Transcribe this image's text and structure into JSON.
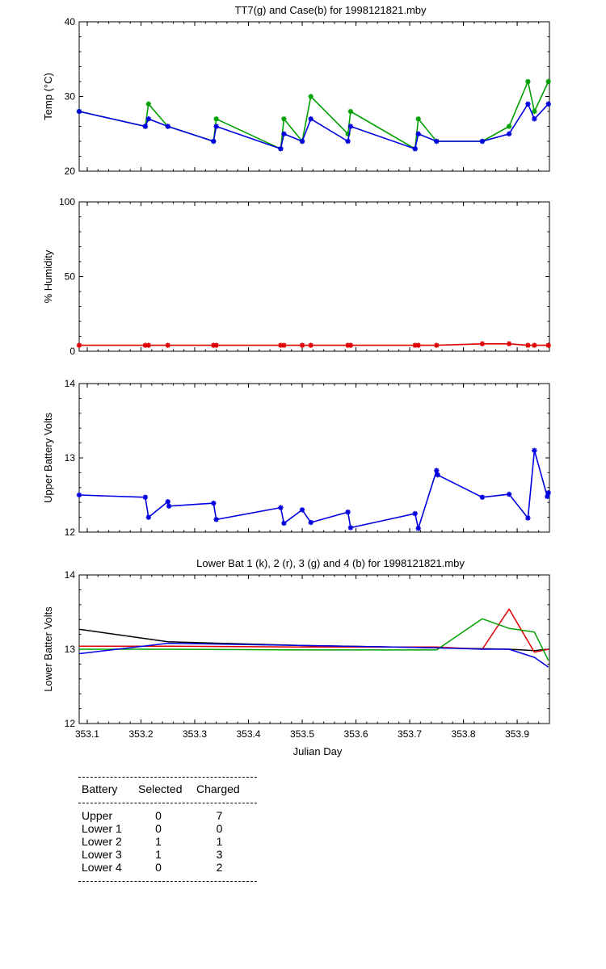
{
  "chart_data": [
    {
      "type": "line",
      "title": "TT7(g) and Case(b) for 1998121821.mby",
      "xlabel": "",
      "ylabel": "Temp  (°C)",
      "xlim": [
        353.085,
        353.96
      ],
      "ylim": [
        20,
        40
      ],
      "yticks": [
        "20",
        "30",
        "40"
      ],
      "series": [
        {
          "name": "TT7",
          "color": "#00a000",
          "x": [
            353.085,
            353.208,
            353.214,
            353.25,
            353.335,
            353.34,
            353.46,
            353.466,
            353.5,
            353.516,
            353.585,
            353.59,
            353.71,
            353.716,
            353.75,
            353.835,
            353.885,
            353.92,
            353.932,
            353.958
          ],
          "y": [
            28,
            26,
            29,
            26,
            24,
            27,
            23,
            27,
            24,
            30,
            25,
            28,
            23,
            27,
            24,
            24,
            26,
            32,
            28,
            32
          ]
        },
        {
          "name": "Case",
          "color": "#0000e0",
          "x": [
            353.085,
            353.208,
            353.214,
            353.25,
            353.335,
            353.34,
            353.46,
            353.466,
            353.5,
            353.516,
            353.585,
            353.59,
            353.71,
            353.716,
            353.75,
            353.835,
            353.885,
            353.92,
            353.932,
            353.958
          ],
          "y": [
            28,
            26,
            27,
            26,
            24,
            26,
            23,
            25,
            24,
            27,
            24,
            26,
            23,
            25,
            24,
            24,
            25,
            29,
            27,
            29
          ]
        }
      ]
    },
    {
      "type": "line",
      "title": "",
      "xlabel": "",
      "ylabel": "% Humidity",
      "xlim": [
        353.085,
        353.96
      ],
      "ylim": [
        0,
        100
      ],
      "yticks": [
        "0",
        "50",
        "100"
      ],
      "series": [
        {
          "name": "",
          "color": "#e00000",
          "x": [
            353.085,
            353.208,
            353.214,
            353.25,
            353.335,
            353.34,
            353.46,
            353.466,
            353.5,
            353.516,
            353.585,
            353.59,
            353.71,
            353.716,
            353.75,
            353.835,
            353.885,
            353.92,
            353.932,
            353.958
          ],
          "y": [
            4,
            4,
            4,
            4,
            4,
            4,
            4,
            4,
            4,
            4,
            4,
            4,
            4,
            4,
            4,
            5,
            5,
            4,
            4,
            4
          ]
        }
      ]
    },
    {
      "type": "line",
      "title": "",
      "xlabel": "",
      "ylabel": "Upper Battery Volts",
      "xlim": [
        353.085,
        353.96
      ],
      "ylim": [
        12,
        14
      ],
      "yticks": [
        "12",
        "13",
        "14"
      ],
      "series": [
        {
          "name": "",
          "color": "#0000e0",
          "x": [
            353.085,
            353.208,
            353.214,
            353.25,
            353.252,
            353.335,
            353.34,
            353.46,
            353.466,
            353.5,
            353.516,
            353.585,
            353.59,
            353.71,
            353.716,
            353.75,
            353.752,
            353.835,
            353.885,
            353.92,
            353.932,
            353.956,
            353.958
          ],
          "y": [
            12.5,
            12.47,
            12.2,
            12.41,
            12.35,
            12.39,
            12.17,
            12.33,
            12.12,
            12.3,
            12.13,
            12.27,
            12.06,
            12.25,
            12.05,
            12.83,
            12.77,
            12.47,
            12.51,
            12.19,
            13.1,
            12.48,
            12.53
          ]
        }
      ]
    },
    {
      "type": "line",
      "title": "Lower Bat 1 (k), 2 (r), 3 (g) and 4 (b) for 1998121821.mby",
      "xlabel": "Julian Day",
      "ylabel": "Lower Batter Volts",
      "xlim": [
        353.085,
        353.96
      ],
      "ylim": [
        12,
        14
      ],
      "yticks": [
        "12",
        "13",
        "14"
      ],
      "xticks": [
        "353.1",
        "353.2",
        "353.3",
        "353.4",
        "353.5",
        "353.6",
        "353.7",
        "353.8",
        "353.9"
      ],
      "series": [
        {
          "name": "1",
          "color": "#000000",
          "x": [
            353.085,
            353.25,
            353.5,
            353.75,
            353.885,
            353.932,
            353.958
          ],
          "y": [
            13.27,
            13.1,
            13.05,
            13.02,
            13.0,
            12.98,
            13.0
          ]
        },
        {
          "name": "2",
          "color": "#e00000",
          "x": [
            353.085,
            353.25,
            353.5,
            353.75,
            353.835,
            353.885,
            353.932,
            353.958
          ],
          "y": [
            13.04,
            13.04,
            13.03,
            13.03,
            13.0,
            13.54,
            12.96,
            13.0
          ]
        },
        {
          "name": "3",
          "color": "#00a000",
          "x": [
            353.085,
            353.25,
            353.5,
            353.75,
            353.835,
            353.885,
            353.932,
            353.958
          ],
          "y": [
            13.0,
            13.0,
            12.99,
            12.99,
            13.41,
            13.28,
            13.23,
            12.85
          ]
        },
        {
          "name": "4",
          "color": "#0000e0",
          "x": [
            353.085,
            353.25,
            353.5,
            353.75,
            353.835,
            353.885,
            353.932,
            353.958
          ],
          "y": [
            12.94,
            13.08,
            13.05,
            13.02,
            13.0,
            13.0,
            12.89,
            12.76
          ]
        }
      ]
    }
  ],
  "summary_table": {
    "headers": [
      "Battery",
      "Selected",
      "Charged"
    ],
    "rows": [
      [
        "Upper",
        "0",
        "7"
      ],
      [
        "Lower 1",
        "0",
        "0"
      ],
      [
        "Lower 2",
        "1",
        "1"
      ],
      [
        "Lower 3",
        "1",
        "3"
      ],
      [
        "Lower 4",
        "0",
        "2"
      ]
    ]
  }
}
